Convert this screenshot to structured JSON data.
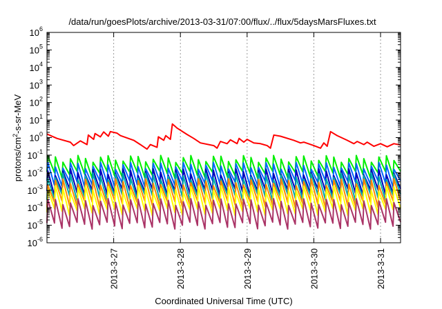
{
  "chart_data": {
    "type": "line",
    "title": "/data/run/goesPlots/archive/2013-03-31/07:00/flux/../flux/5daysMarsFluxes.txt",
    "xlabel": "Coordinated Universal Time (UTC)",
    "ylabel": {
      "prefix": "protons/cm",
      "sup": "2",
      "suffix": "-s-sr-MeV"
    },
    "yscale": "log",
    "ylim_exp": [
      -6,
      6
    ],
    "y_ticks": [
      {
        "base": "10",
        "exp": "6"
      },
      {
        "base": "10",
        "exp": "5"
      },
      {
        "base": "10",
        "exp": "4"
      },
      {
        "base": "10",
        "exp": "3"
      },
      {
        "base": "10",
        "exp": "2"
      },
      {
        "base": "10",
        "exp": "1"
      },
      {
        "base": "10",
        "exp": "0"
      },
      {
        "base": "10",
        "exp": "-1"
      },
      {
        "base": "10",
        "exp": "-2"
      },
      {
        "base": "10",
        "exp": "-3"
      },
      {
        "base": "10",
        "exp": "-4"
      },
      {
        "base": "10",
        "exp": "-5"
      },
      {
        "base": "10",
        "exp": "-6"
      }
    ],
    "xlim": [
      26.0,
      31.3
    ],
    "x_ticks": [
      {
        "label": "2013-3-27",
        "day": 27
      },
      {
        "label": "2013-3-28",
        "day": 28
      },
      {
        "label": "2013-3-29",
        "day": 29
      },
      {
        "label": "2013-3-30",
        "day": 30
      },
      {
        "label": "2013-3-31",
        "day": 31
      }
    ],
    "grid": "dashed vertical at day ticks",
    "series": [
      {
        "color": "#ff0000",
        "points": [
          [
            26.0,
            1.6
          ],
          [
            26.15,
            0.9
          ],
          [
            26.35,
            0.55
          ],
          [
            26.4,
            0.35
          ],
          [
            26.5,
            0.65
          ],
          [
            26.6,
            0.4
          ],
          [
            26.62,
            1.4
          ],
          [
            26.7,
            0.8
          ],
          [
            26.72,
            1.7
          ],
          [
            26.8,
            1.1
          ],
          [
            26.85,
            2.1
          ],
          [
            26.92,
            1.2
          ],
          [
            26.95,
            2.2
          ],
          [
            27.05,
            1.8
          ],
          [
            27.1,
            1.3
          ],
          [
            27.3,
            0.7
          ],
          [
            27.4,
            0.4
          ],
          [
            27.5,
            0.22
          ],
          [
            27.55,
            0.4
          ],
          [
            27.65,
            0.28
          ],
          [
            27.67,
            1.1
          ],
          [
            27.75,
            0.7
          ],
          [
            27.78,
            1.3
          ],
          [
            27.85,
            0.8
          ],
          [
            27.88,
            6.0
          ],
          [
            27.95,
            3.5
          ],
          [
            28.1,
            1.5
          ],
          [
            28.2,
            0.9
          ],
          [
            28.3,
            0.5
          ],
          [
            28.5,
            0.35
          ],
          [
            28.55,
            0.25
          ],
          [
            28.6,
            0.6
          ],
          [
            28.7,
            0.45
          ],
          [
            28.75,
            0.75
          ],
          [
            28.85,
            0.45
          ],
          [
            28.88,
            0.9
          ],
          [
            28.95,
            0.55
          ],
          [
            29.0,
            0.8
          ],
          [
            29.1,
            0.5
          ],
          [
            29.2,
            0.45
          ],
          [
            29.3,
            0.35
          ],
          [
            29.35,
            0.25
          ],
          [
            29.4,
            1.4
          ],
          [
            29.5,
            1.2
          ],
          [
            29.7,
            0.7
          ],
          [
            29.8,
            0.5
          ],
          [
            29.85,
            0.55
          ],
          [
            30.0,
            0.35
          ],
          [
            30.1,
            0.25
          ],
          [
            30.15,
            0.5
          ],
          [
            30.2,
            0.32
          ],
          [
            30.25,
            2.2
          ],
          [
            30.35,
            1.3
          ],
          [
            30.5,
            0.7
          ],
          [
            30.6,
            0.45
          ],
          [
            30.65,
            0.6
          ],
          [
            30.75,
            0.4
          ],
          [
            30.8,
            0.55
          ],
          [
            30.9,
            0.32
          ],
          [
            31.0,
            0.45
          ],
          [
            31.1,
            0.3
          ],
          [
            31.2,
            0.45
          ],
          [
            31.3,
            0.38
          ]
        ]
      },
      {
        "color": "#00ee00",
        "base": 0.012,
        "amp": 8,
        "cycles": 47
      },
      {
        "color": "#0066ff",
        "base": 0.0035,
        "amp": 11,
        "cycles": 47
      },
      {
        "color": "#0000bb",
        "base": 0.0012,
        "amp": 14,
        "cycles": 47
      },
      {
        "color": "#00aaaa",
        "base": 0.0006,
        "amp": 16,
        "cycles": 47
      },
      {
        "color": "#ff8800",
        "base": 0.00025,
        "amp": 18,
        "cycles": 47
      },
      {
        "color": "#ffff00",
        "base": 9e-05,
        "amp": 20,
        "cycles": 47
      },
      {
        "color": "#aa3366",
        "base": 1.5e-05,
        "amp": 22,
        "cycles": 47
      }
    ]
  }
}
